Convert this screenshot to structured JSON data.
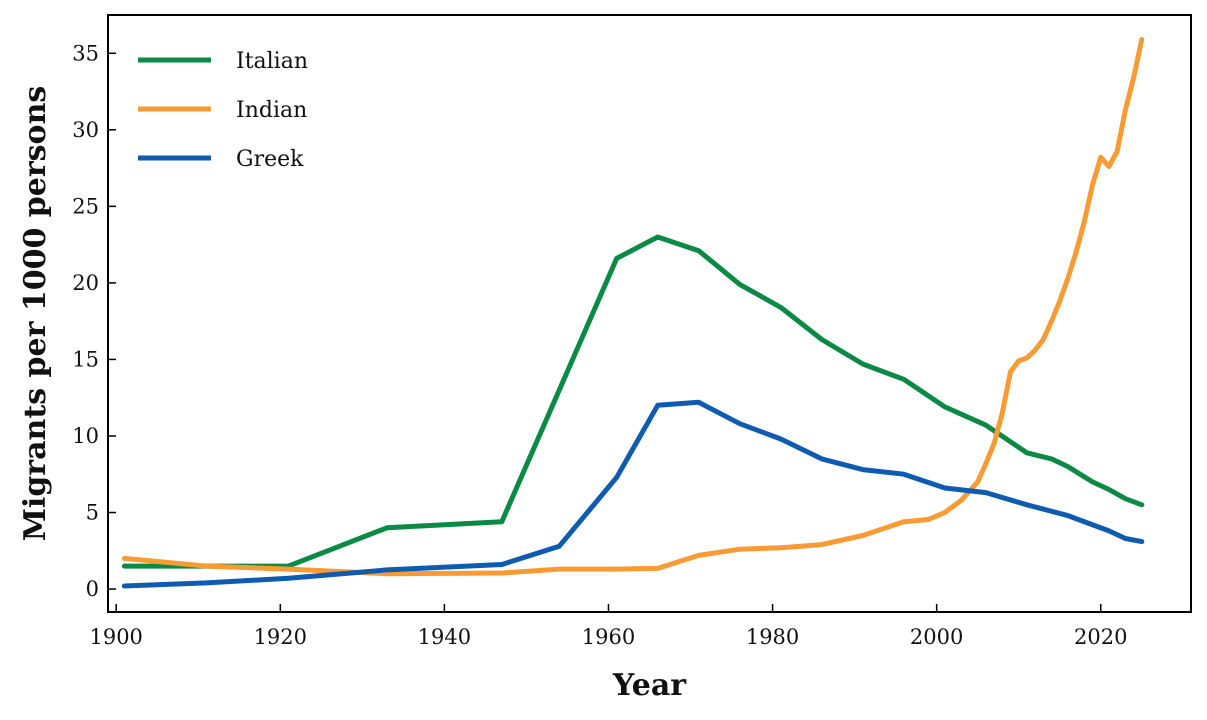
{
  "chart_data": {
    "type": "line",
    "title": "",
    "xlabel": "Year",
    "ylabel": "Migrants per 1000 persons",
    "xlim": [
      1899,
      2031
    ],
    "ylim": [
      -1.5,
      37.5
    ],
    "xticks": [
      1900,
      1920,
      1940,
      1960,
      1980,
      2000,
      2020
    ],
    "yticks": [
      0,
      5,
      10,
      15,
      20,
      25,
      30,
      35
    ],
    "grid": false,
    "legend_position": "top-left",
    "series": [
      {
        "name": "Italian",
        "color": "#0b8a45",
        "points": [
          [
            1901,
            1.5
          ],
          [
            1911,
            1.5
          ],
          [
            1921,
            1.5
          ],
          [
            1933,
            4.0
          ],
          [
            1947,
            4.4
          ],
          [
            1954,
            13.0
          ],
          [
            1961,
            21.6
          ],
          [
            1966,
            23.0
          ],
          [
            1971,
            22.1
          ],
          [
            1976,
            19.9
          ],
          [
            1981,
            18.4
          ],
          [
            1986,
            16.3
          ],
          [
            1991,
            14.7
          ],
          [
            1996,
            13.7
          ],
          [
            2001,
            11.9
          ],
          [
            2006,
            10.7
          ],
          [
            2011,
            8.9
          ],
          [
            2014,
            8.5
          ],
          [
            2016,
            8.0
          ],
          [
            2019,
            7.0
          ],
          [
            2021,
            6.5
          ],
          [
            2023,
            5.9
          ],
          [
            2025,
            5.5
          ]
        ]
      },
      {
        "name": "Indian",
        "color": "#f89b35",
        "points": [
          [
            1901,
            2.0
          ],
          [
            1911,
            1.5
          ],
          [
            1921,
            1.3
          ],
          [
            1933,
            1.0
          ],
          [
            1947,
            1.05
          ],
          [
            1954,
            1.3
          ],
          [
            1961,
            1.3
          ],
          [
            1966,
            1.35
          ],
          [
            1971,
            2.2
          ],
          [
            1976,
            2.6
          ],
          [
            1981,
            2.7
          ],
          [
            1986,
            2.9
          ],
          [
            1991,
            3.5
          ],
          [
            1996,
            4.4
          ],
          [
            1998,
            4.5
          ],
          [
            1999,
            4.55
          ],
          [
            2001,
            5.0
          ],
          [
            2003,
            5.8
          ],
          [
            2005,
            7.0
          ],
          [
            2006,
            8.2
          ],
          [
            2007,
            9.5
          ],
          [
            2008,
            11.5
          ],
          [
            2009,
            14.2
          ],
          [
            2010,
            14.9
          ],
          [
            2011,
            15.1
          ],
          [
            2012,
            15.6
          ],
          [
            2013,
            16.3
          ],
          [
            2014,
            17.5
          ],
          [
            2015,
            18.8
          ],
          [
            2016,
            20.3
          ],
          [
            2017,
            22.0
          ],
          [
            2018,
            24.0
          ],
          [
            2019,
            26.4
          ],
          [
            2020,
            28.2
          ],
          [
            2021,
            27.6
          ],
          [
            2022,
            28.6
          ],
          [
            2023,
            31.3
          ],
          [
            2024,
            33.4
          ],
          [
            2025,
            35.9
          ]
        ]
      },
      {
        "name": "Greek",
        "color": "#0e5bb0",
        "points": [
          [
            1901,
            0.2
          ],
          [
            1911,
            0.4
          ],
          [
            1921,
            0.7
          ],
          [
            1933,
            1.25
          ],
          [
            1947,
            1.6
          ],
          [
            1954,
            2.8
          ],
          [
            1961,
            7.3
          ],
          [
            1966,
            12.0
          ],
          [
            1971,
            12.2
          ],
          [
            1976,
            10.8
          ],
          [
            1981,
            9.8
          ],
          [
            1986,
            8.5
          ],
          [
            1991,
            7.8
          ],
          [
            1996,
            7.5
          ],
          [
            2001,
            6.6
          ],
          [
            2006,
            6.3
          ],
          [
            2011,
            5.5
          ],
          [
            2016,
            4.8
          ],
          [
            2021,
            3.8
          ],
          [
            2023,
            3.3
          ],
          [
            2025,
            3.1
          ]
        ]
      }
    ]
  }
}
